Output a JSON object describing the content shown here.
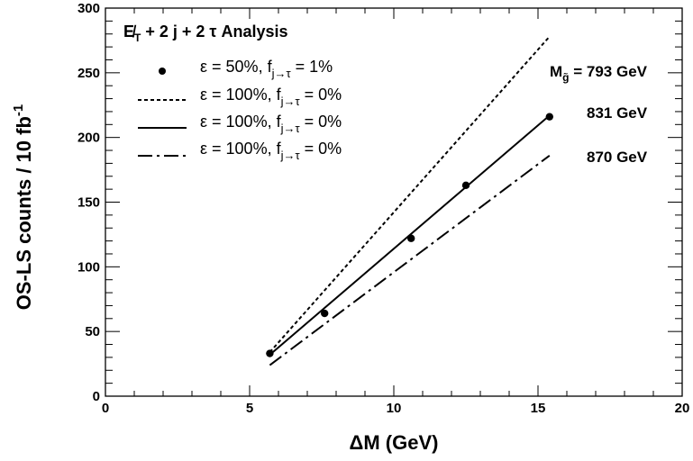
{
  "chart_data": {
    "type": "line",
    "title": "E̸T + 2 j + 2 τ Analysis",
    "xlabel": "ΔM (GeV)",
    "ylabel": "OS-LS counts / 10 fb-1",
    "xlim": [
      0,
      20
    ],
    "ylim": [
      0,
      300
    ],
    "x_ticks": [
      "0",
      "5",
      "10",
      "15",
      "20"
    ],
    "y_ticks": [
      "0",
      "50",
      "100",
      "150",
      "200",
      "250",
      "300"
    ],
    "grid": false,
    "legend_position": "top-left",
    "legend": [
      {
        "label": "ε = 50%, fj→τ = 1%",
        "style": "marker"
      },
      {
        "label": "ε = 100%, fj→τ = 0%",
        "style": "dashed"
      },
      {
        "label": "ε = 100%, fj→τ = 0%",
        "style": "solid"
      },
      {
        "label": "ε = 100%, fj→τ = 0%",
        "style": "dash-dot"
      }
    ],
    "series": [
      {
        "name": "Mg̃ = 793 GeV",
        "style": "dashed",
        "x": [
          5.7,
          15.4
        ],
        "y": [
          34,
          278
        ]
      },
      {
        "name": "831 GeV",
        "style": "solid",
        "x": [
          5.7,
          15.4
        ],
        "y": [
          32,
          217
        ]
      },
      {
        "name": "870 GeV",
        "style": "dash-dot",
        "x": [
          5.7,
          15.4
        ],
        "y": [
          24,
          186
        ]
      },
      {
        "name": "ε = 50%, fj→τ = 1%",
        "style": "marker",
        "x": [
          5.7,
          7.6,
          10.6,
          12.5,
          15.4
        ],
        "y": [
          33,
          64,
          122,
          163,
          216
        ]
      }
    ]
  }
}
